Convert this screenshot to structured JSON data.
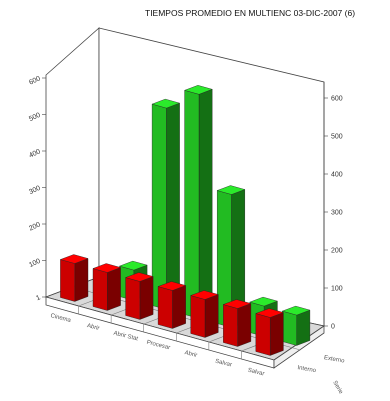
{
  "chart_data": {
    "type": "bar",
    "title": "TIEMPOS PROMEDIO EN MULTIENC 03-DIC-2007  (6)",
    "categories": [
      "Cinema",
      "Abrir",
      "Abrir Stat",
      "Procesar",
      "Abrir",
      "Salvar",
      "Salvar"
    ],
    "series": [
      {
        "name": "Interno",
        "color": "#cc0000",
        "values": [
          1,
          1,
          1,
          1,
          1,
          1,
          1
        ]
      },
      {
        "name": "Externo",
        "color": "#22bb22",
        "values": [
          0,
          0.8,
          5.3,
          5.9,
          3.5,
          0.8,
          0.8
        ]
      }
    ],
    "right_axis_ticks": [
      "600",
      "500",
      "400",
      "300",
      "200",
      "100",
      "0"
    ],
    "left_axis_ticks": [
      "600",
      "500",
      "400",
      "300",
      "200",
      "100",
      "1"
    ],
    "series_axis_label": "Serie"
  }
}
